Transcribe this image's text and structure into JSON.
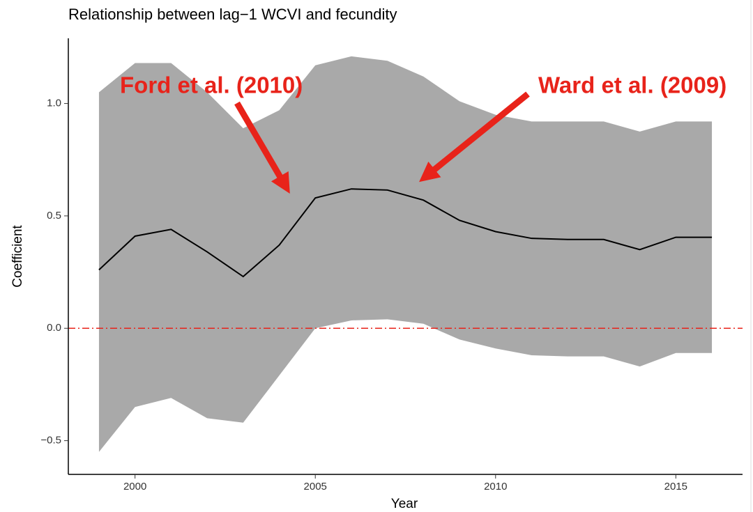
{
  "chart_data": {
    "type": "line",
    "title": "Relationship between lag−1 WCVI and fecundity",
    "x_label": "Year",
    "y_label": "Coefficient",
    "x": [
      1999,
      2000,
      2001,
      2002,
      2003,
      2004,
      2005,
      2006,
      2007,
      2008,
      2009,
      2010,
      2011,
      2012,
      2013,
      2014,
      2015,
      2016
    ],
    "values": [
      0.26,
      0.41,
      0.44,
      0.34,
      0.23,
      0.37,
      0.58,
      0.62,
      0.615,
      0.57,
      0.48,
      0.43,
      0.4,
      0.395,
      0.395,
      0.35,
      0.405,
      0.405
    ],
    "upper": [
      1.05,
      1.18,
      1.18,
      1.05,
      0.89,
      0.97,
      1.17,
      1.21,
      1.19,
      1.12,
      1.01,
      0.95,
      0.92,
      0.92,
      0.92,
      0.875,
      0.92,
      0.92
    ],
    "lower": [
      -0.55,
      -0.35,
      -0.31,
      -0.4,
      -0.42,
      -0.21,
      0.0,
      0.035,
      0.04,
      0.02,
      -0.05,
      -0.09,
      -0.12,
      -0.125,
      -0.125,
      -0.17,
      -0.11,
      -0.11
    ],
    "line_color": "#000000",
    "band_color": "#a9a9a9",
    "reference_line": {
      "value": 0,
      "color": "#e8231a"
    },
    "annotations": [
      "Ford et al. (2010)",
      "Ward et al. (2009)"
    ],
    "xlim": [
      1998.15,
      2016.85
    ],
    "ylim": [
      -0.65,
      1.29
    ],
    "xticks": [
      2000,
      2005,
      2010,
      2015
    ],
    "yticks": [
      {
        "value": -0.5,
        "label": "−0.5"
      },
      {
        "value": 0,
        "label": "0.0"
      },
      {
        "value": 0.5,
        "label": "0.5"
      },
      {
        "value": 1,
        "label": "1.0"
      }
    ]
  }
}
